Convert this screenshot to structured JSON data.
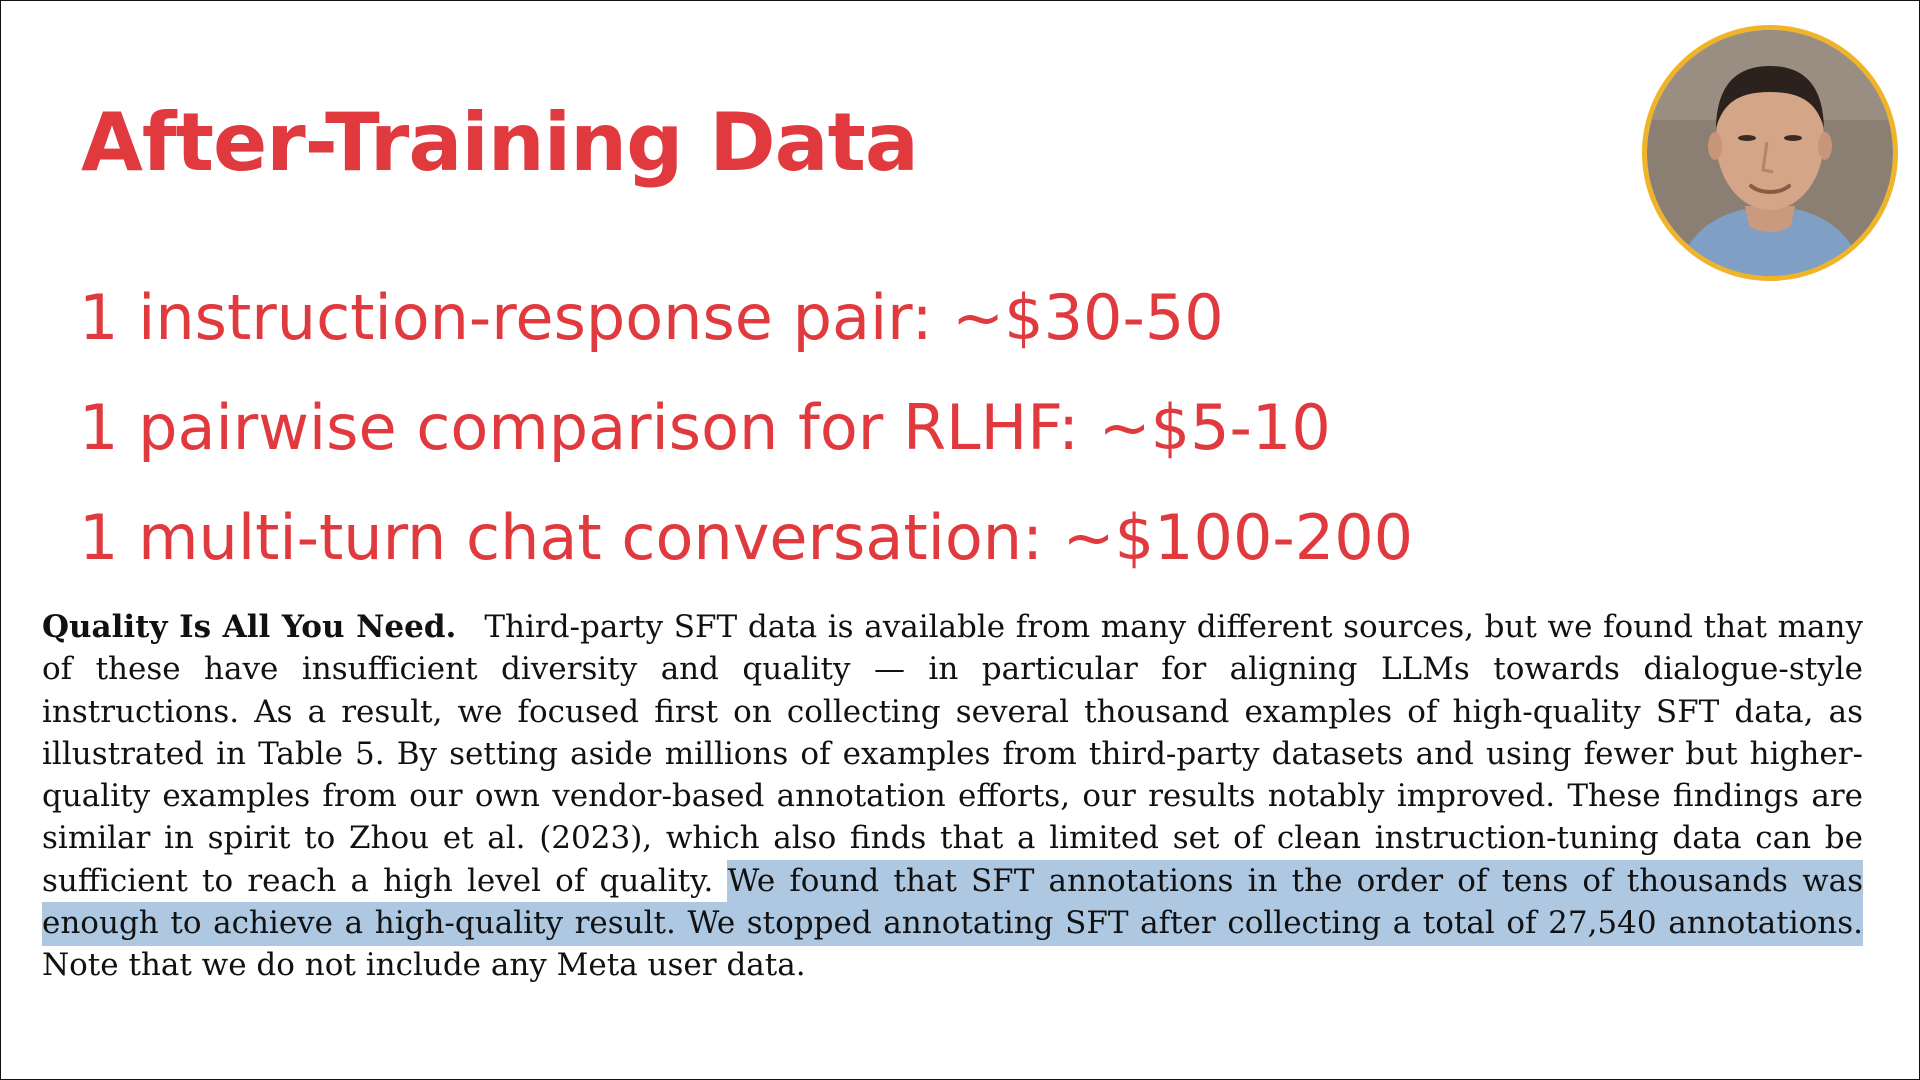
{
  "colors": {
    "accent": "#e0393e",
    "highlight": "#aec8e2",
    "avatar_border": "#f0b429",
    "text": "#111111"
  },
  "slide": {
    "title": "After-Training Data",
    "price_items": [
      "1 instruction-response pair: ~$30-50",
      "1 pairwise comparison for RLHF: ~$5-10",
      "1 multi-turn chat conversation: ~$100-200"
    ]
  },
  "excerpt": {
    "heading": "Quality Is All You Need.",
    "text_before": "Third-party SFT data is available from many different sources, but we found that many of these have insufficient diversity and quality — in particular for aligning LLMs towards dialogue-style instructions. As a result, we focused first on collecting several thousand examples of high-quality SFT data, as illustrated in Table 5. By setting aside millions of examples from third-party datasets and using fewer but higher-quality examples from our own vendor-based annotation efforts, our results notably improved. These findings are similar in spirit to Zhou et al. (2023), which also finds that a limited set of clean instruction-tuning data can be sufficient to reach a high level of quality. ",
    "highlighted": "We found that SFT annotations in the order of tens of thousands was enough to achieve a high-quality result. We stopped annotating SFT after collecting a total of 27,540 annotations.",
    "text_after": " Note that we do not include any Meta user data."
  },
  "presenter": {
    "icon": "presenter-webcam-icon"
  }
}
